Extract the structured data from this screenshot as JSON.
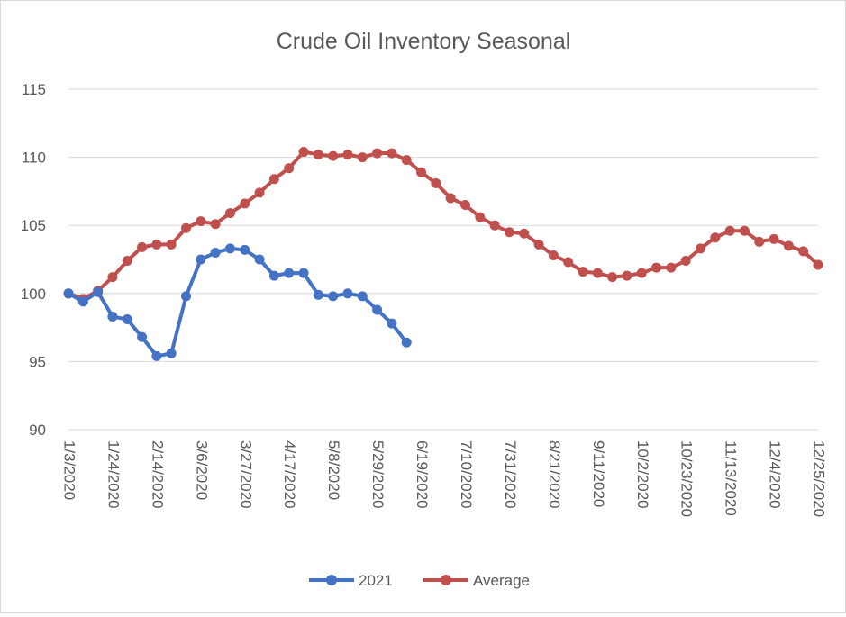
{
  "chart_data": {
    "type": "line",
    "title": "Crude Oil Inventory Seasonal",
    "xlabel": "",
    "ylabel": "",
    "ylim": [
      90,
      115
    ],
    "yticks": [
      90,
      95,
      100,
      105,
      110,
      115
    ],
    "grid": true,
    "legend_position": "bottom",
    "x_ticks": [
      "1/3/2020",
      "1/24/2020",
      "2/14/2020",
      "3/6/2020",
      "3/27/2020",
      "4/17/2020",
      "5/8/2020",
      "5/29/2020",
      "6/19/2020",
      "7/10/2020",
      "7/31/2020",
      "8/21/2020",
      "9/11/2020",
      "10/2/2020",
      "10/23/2020",
      "11/13/2020",
      "12/4/2020",
      "12/25/2020"
    ],
    "x_weeks_total": 51,
    "series": [
      {
        "name": "2021",
        "color": "#4472C4",
        "values": [
          100.0,
          99.4,
          100.1,
          98.3,
          98.1,
          96.8,
          95.4,
          95.6,
          99.8,
          102.5,
          103.0,
          103.3,
          103.2,
          102.5,
          101.3,
          101.5,
          101.5,
          99.9,
          99.8,
          100.0,
          99.8,
          98.8,
          97.8,
          96.4
        ]
      },
      {
        "name": "Average",
        "color": "#C0504D",
        "values": [
          100.0,
          99.6,
          100.2,
          101.2,
          102.4,
          103.4,
          103.6,
          103.6,
          104.8,
          105.3,
          105.1,
          105.9,
          106.6,
          107.4,
          108.4,
          109.2,
          110.4,
          110.2,
          110.1,
          110.2,
          110.0,
          110.3,
          110.3,
          109.8,
          108.9,
          108.1,
          107.0,
          106.5,
          105.6,
          105.0,
          104.5,
          104.4,
          103.6,
          102.8,
          102.3,
          101.6,
          101.5,
          101.2,
          101.3,
          101.5,
          101.9,
          101.9,
          102.4,
          103.3,
          104.1,
          104.6,
          104.6,
          103.8,
          104.0,
          103.5,
          103.1,
          102.1
        ]
      }
    ]
  }
}
